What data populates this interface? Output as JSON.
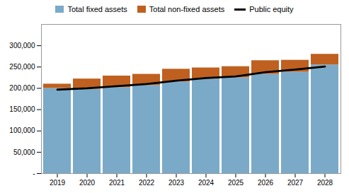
{
  "chart_data": {
    "type": "bar",
    "stacked": true,
    "categories": [
      "2019",
      "2020",
      "2021",
      "2022",
      "2023",
      "2024",
      "2025",
      "2026",
      "2027",
      "2028"
    ],
    "series": [
      {
        "name": "Total fixed assets",
        "type": "bar",
        "color": "#7AAAC8",
        "values": [
          200000,
          198000,
          202000,
          207000,
          215000,
          222000,
          225000,
          233000,
          238000,
          255000
        ]
      },
      {
        "name": "Total non-fixed assets",
        "type": "bar",
        "color": "#BF6020",
        "values": [
          10000,
          24000,
          27000,
          26000,
          30000,
          26000,
          26000,
          32000,
          28000,
          25000
        ]
      },
      {
        "name": "Public equity",
        "type": "line",
        "color": "#000000",
        "values": [
          197000,
          200000,
          205000,
          210000,
          218000,
          224000,
          228000,
          238000,
          244000,
          251000
        ]
      }
    ],
    "ylim": [
      0,
      350000
    ],
    "yticks": [
      {
        "value": 0,
        "label": "-"
      },
      {
        "value": 50000,
        "label": "50,000"
      },
      {
        "value": 100000,
        "label": "100,000"
      },
      {
        "value": 150000,
        "label": "150,000"
      },
      {
        "value": 200000,
        "label": "200,000"
      },
      {
        "value": 250000,
        "label": "250,000"
      },
      {
        "value": 300000,
        "label": "300,000"
      }
    ],
    "grid": false,
    "legend": "top"
  }
}
